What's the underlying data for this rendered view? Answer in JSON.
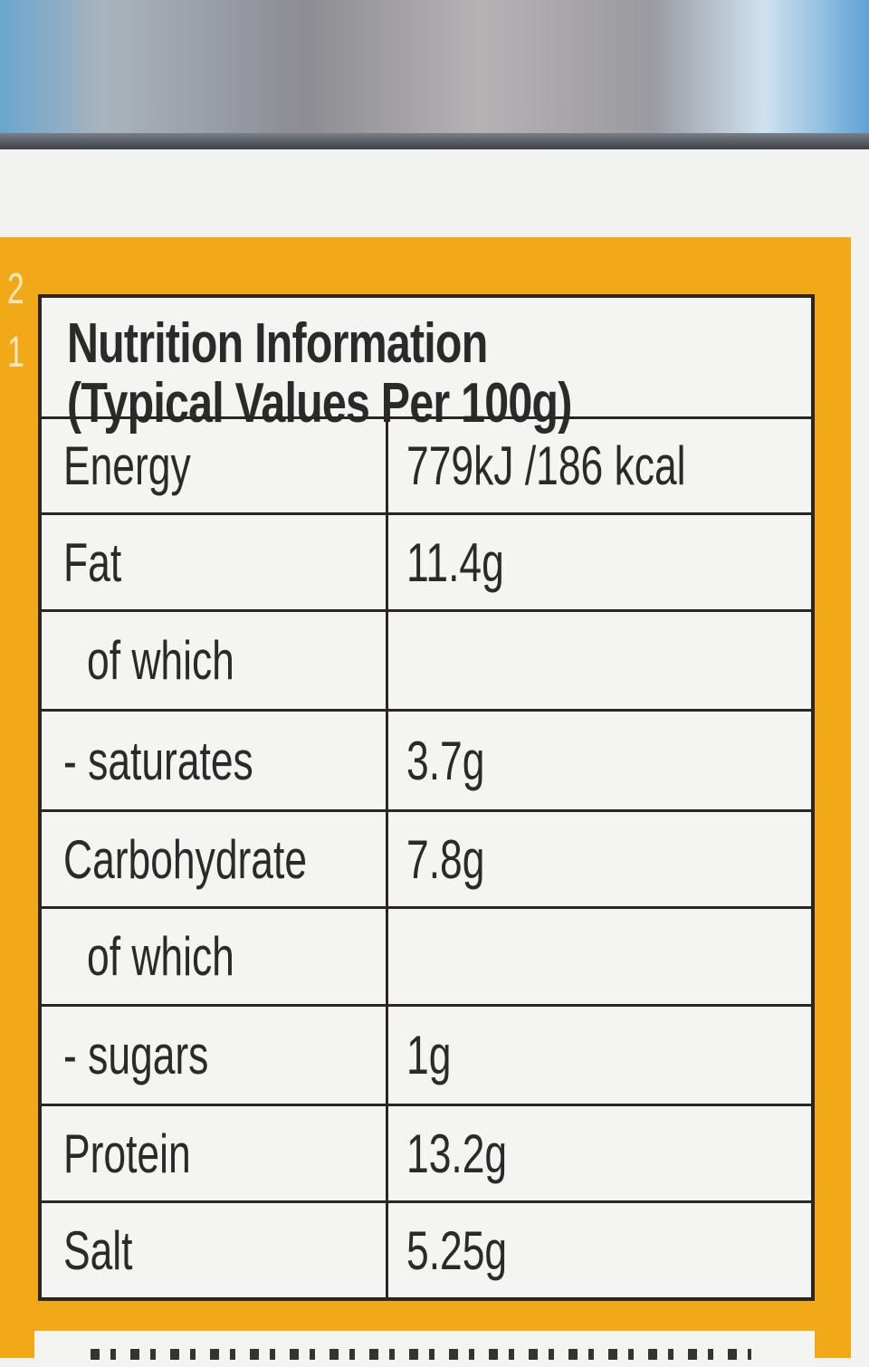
{
  "side_numbers": [
    "2",
    "1"
  ],
  "label": {
    "title_line1": "Nutrition Information",
    "title_line2": "(Typical Values Per 100g)",
    "rows": [
      {
        "nutrient": "Energy",
        "value": "779kJ /186 kcal",
        "indent": false
      },
      {
        "nutrient": "Fat",
        "value": "11.4g",
        "indent": false
      },
      {
        "nutrient": "of which",
        "value": "",
        "indent": true
      },
      {
        "nutrient": "- saturates",
        "value": "3.7g",
        "indent": false
      },
      {
        "nutrient": "Carbohydrate",
        "value": "7.8g",
        "indent": false
      },
      {
        "nutrient": "of which",
        "value": "",
        "indent": true
      },
      {
        "nutrient": "- sugars",
        "value": "1g",
        "indent": false
      },
      {
        "nutrient": "Protein",
        "value": "13.2g",
        "indent": false
      },
      {
        "nutrient": "Salt",
        "value": "5.25g",
        "indent": false
      }
    ]
  },
  "colors": {
    "border_orange": "#f1a917",
    "table_bg": "#f4f4f2",
    "text": "#2a2a2a"
  }
}
